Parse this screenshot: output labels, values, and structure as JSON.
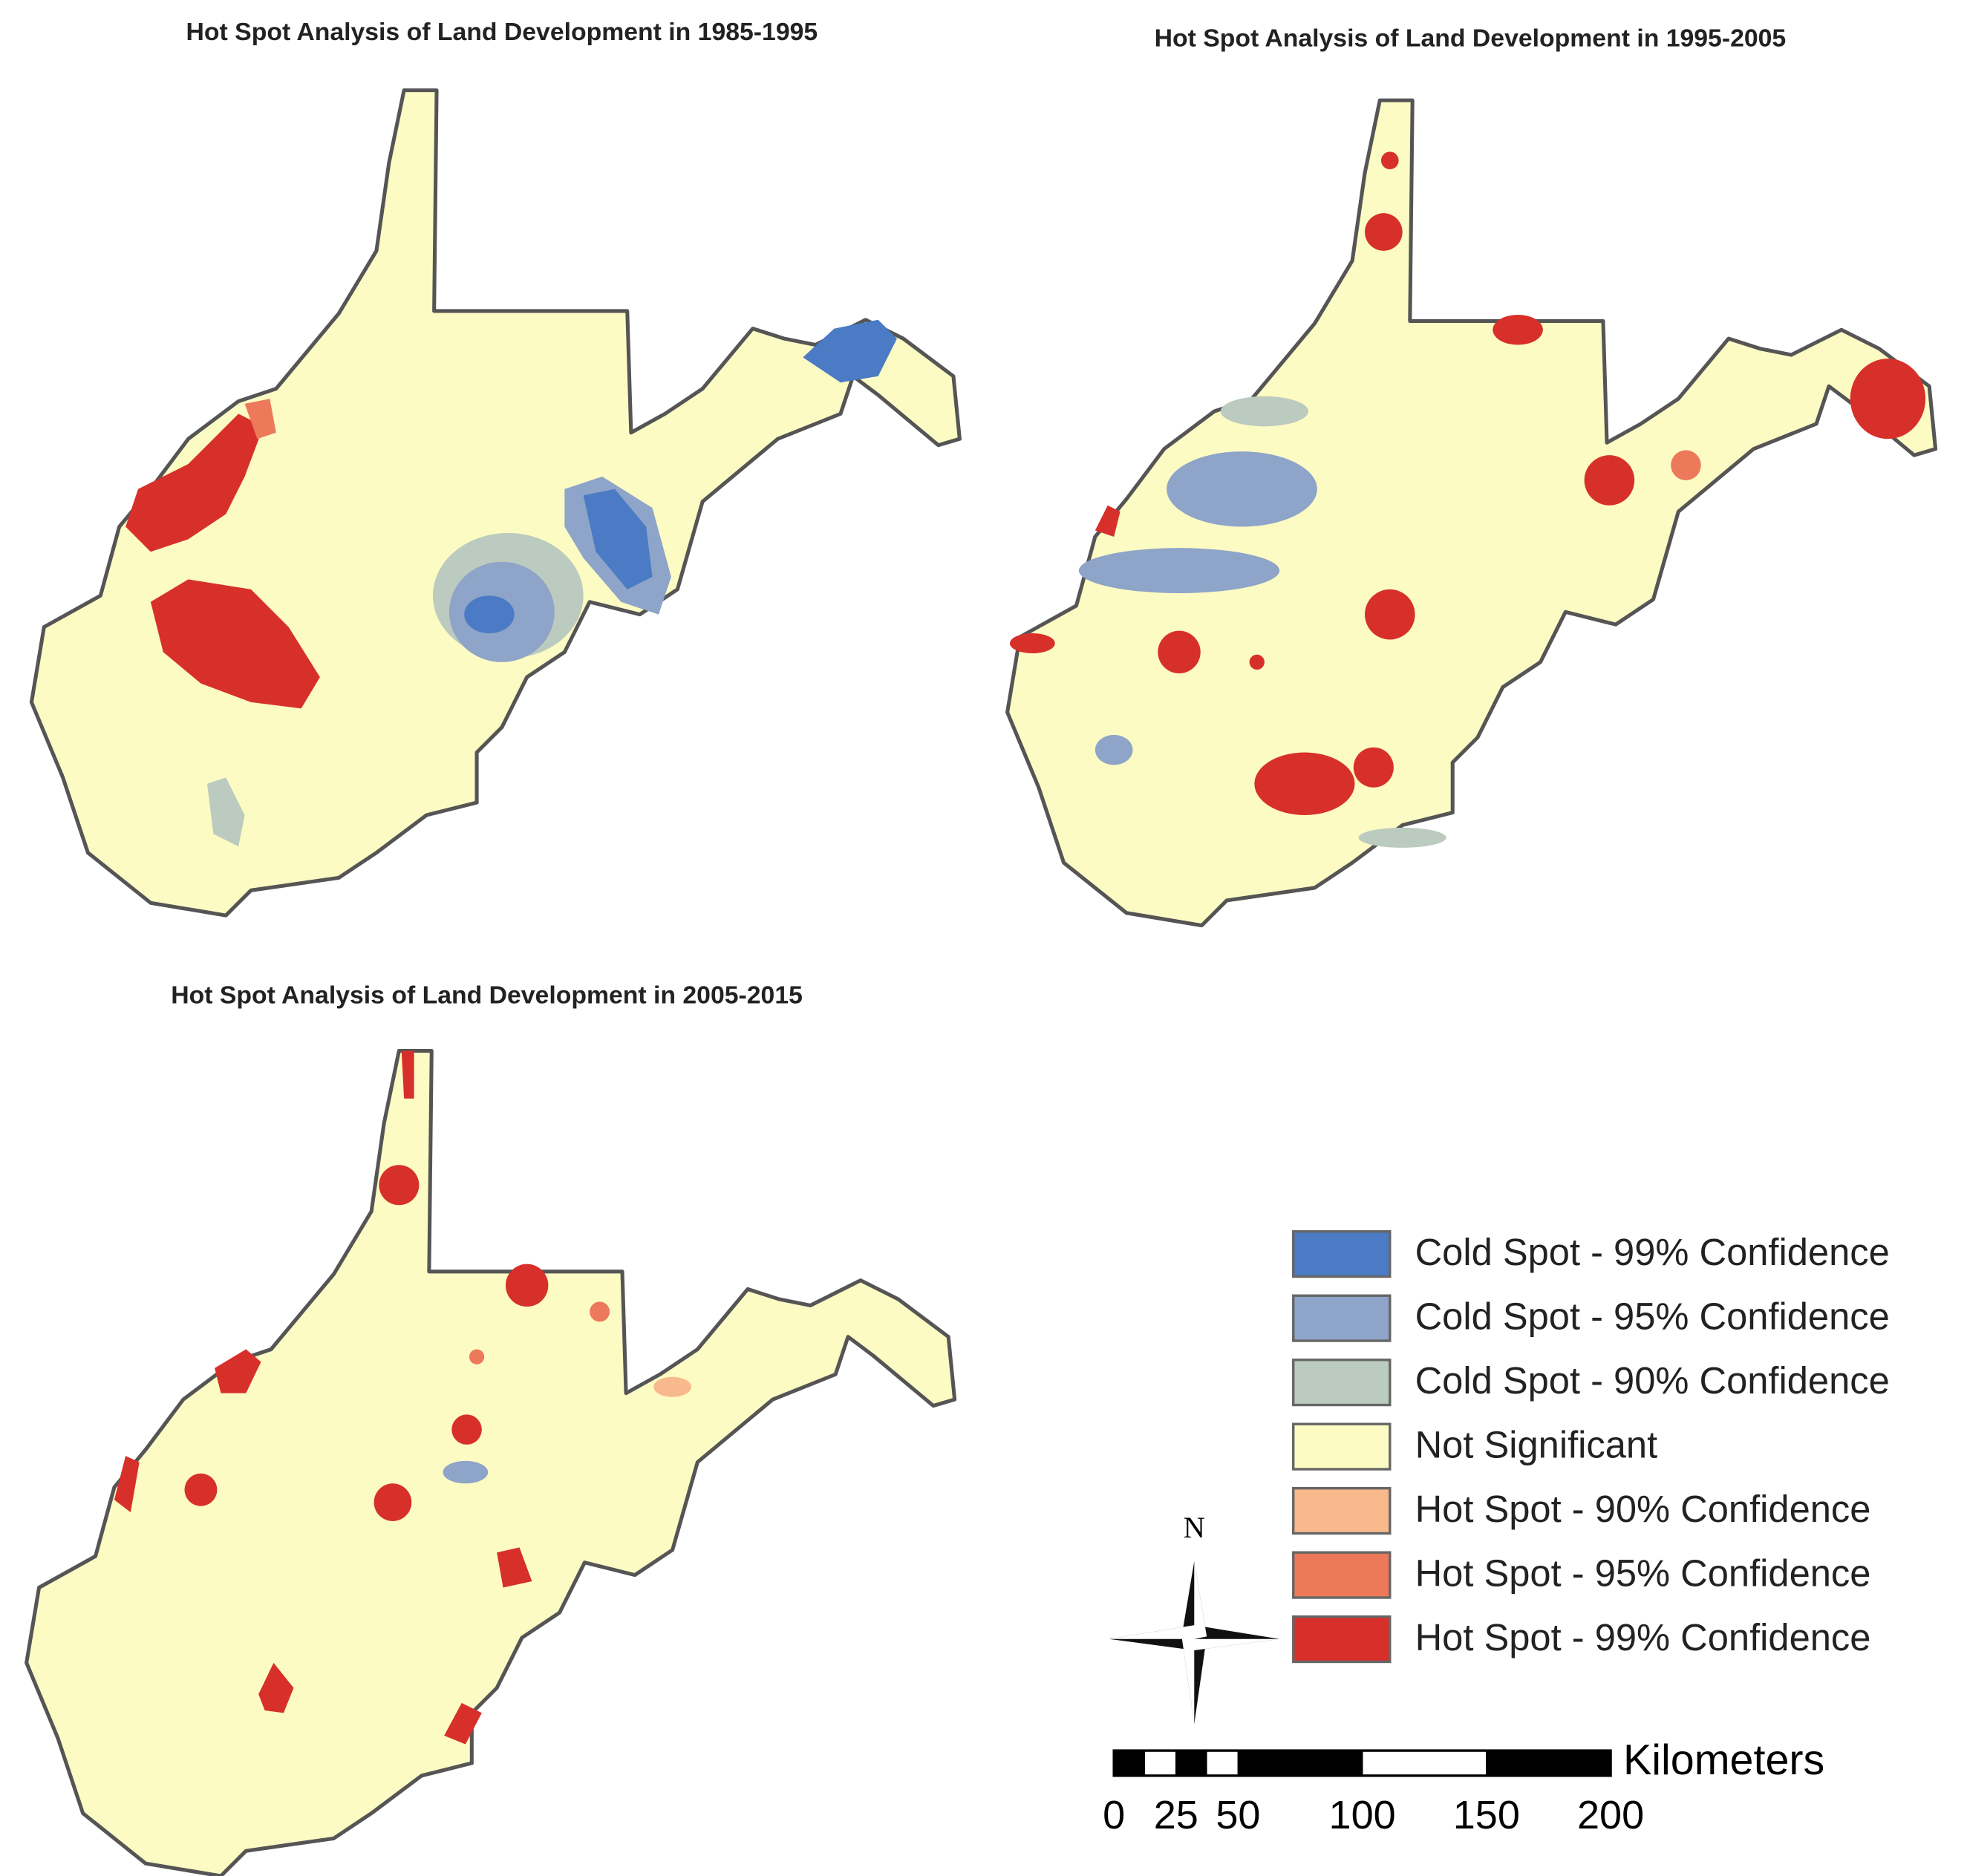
{
  "maps": [
    {
      "title": "Hot Spot Analysis of Land Development in 1985-1995"
    },
    {
      "title": "Hot Spot Analysis of Land Development in 1995-2005"
    },
    {
      "title": "Hot Spot Analysis of Land Development in 2005-2015"
    }
  ],
  "legend": [
    {
      "label": "Cold Spot - 99% Confidence",
      "color": "#4a7bc4"
    },
    {
      "label": "Cold Spot - 95% Confidence",
      "color": "#8ea4c8"
    },
    {
      "label": "Cold Spot - 90% Confidence",
      "color": "#bccbbf"
    },
    {
      "label": "Not Significant",
      "color": "#fdfbc4"
    },
    {
      "label": "Hot Spot - 90% Confidence",
      "color": "#f8b98c"
    },
    {
      "label": "Hot Spot - 95% Confidence",
      "color": "#ec7a5a"
    },
    {
      "label": "Hot Spot - 99% Confidence",
      "color": "#d7302a"
    }
  ],
  "north_arrow": {
    "label": "N"
  },
  "scale_bar": {
    "unit": "Kilometers",
    "ticks": [
      0,
      25,
      50,
      100,
      150,
      200
    ]
  }
}
